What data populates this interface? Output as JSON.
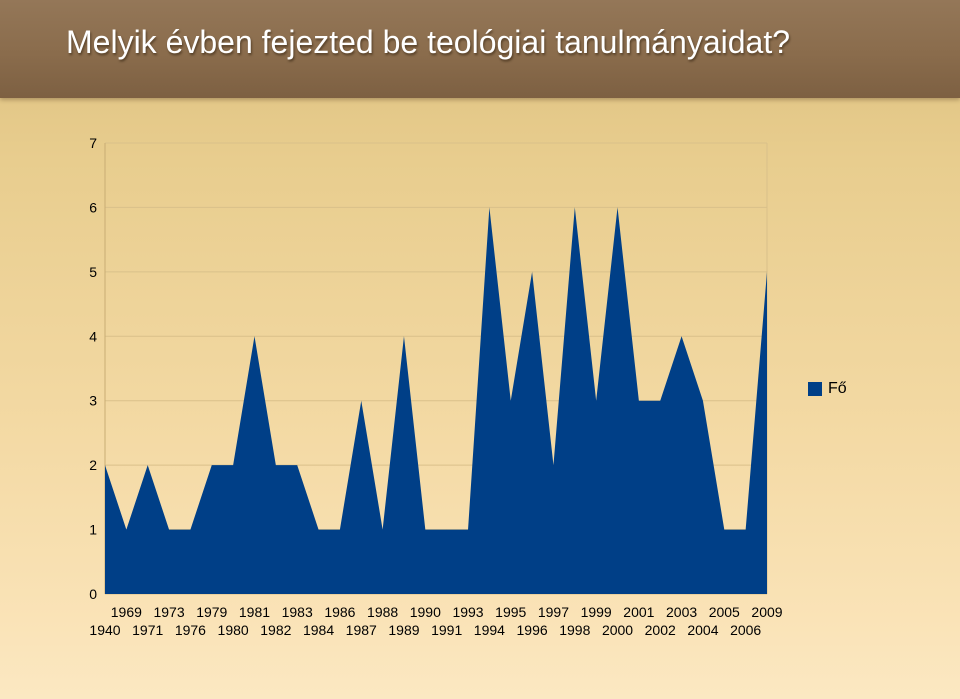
{
  "title": "Melyik évben fejezted be teológiai tanulmányaidat?",
  "legend": {
    "label": "Fő",
    "color": "#003f87"
  },
  "chart_data": {
    "type": "area",
    "categories": [
      "1940",
      "1969",
      "1971",
      "1973",
      "1976",
      "1979",
      "1980",
      "1981",
      "1982",
      "1983",
      "1984",
      "1986",
      "1987",
      "1988",
      "1989",
      "1990",
      "1991",
      "1993",
      "1994",
      "1995",
      "1996",
      "1997",
      "1998",
      "1999",
      "2000",
      "2001",
      "2002",
      "2003",
      "2004",
      "2005",
      "2006",
      "2009"
    ],
    "series": [
      {
        "name": "Fő",
        "color": "#003f87",
        "values": [
          2,
          1,
          2,
          1,
          1,
          2,
          2,
          4,
          2,
          2,
          1,
          1,
          3,
          1,
          4,
          1,
          1,
          1,
          6,
          3,
          5,
          2,
          6,
          3,
          6,
          3,
          3,
          4,
          3,
          1,
          1,
          5
        ]
      }
    ],
    "ylim": [
      0,
      7
    ],
    "yticks": [
      0,
      1,
      2,
      3,
      4,
      5,
      6,
      7
    ],
    "grid": true,
    "legend_position": "right"
  }
}
